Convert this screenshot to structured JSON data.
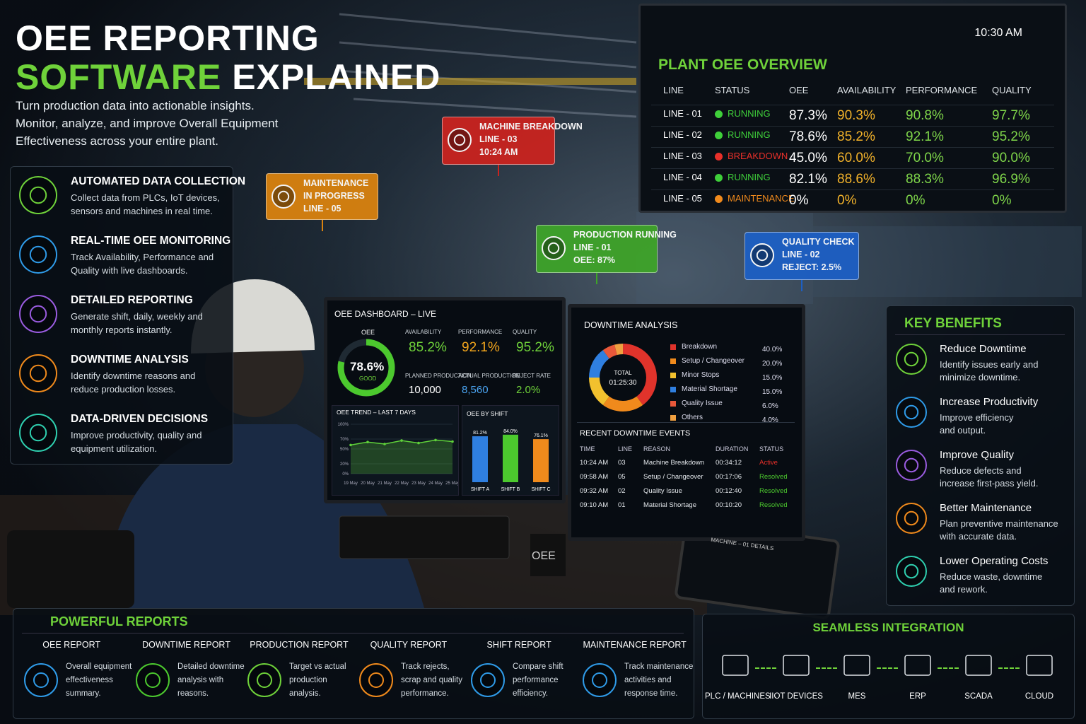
{
  "header": {
    "title_line1": "OEE REPORTING",
    "title_highlight": "SOFTWARE",
    "title_rest": "EXPLAINED",
    "subtitle": [
      "Turn production data into actionable insights.",
      "Monitor, analyze, and improve Overall Equipment",
      "Effectiveness across your entire plant."
    ]
  },
  "features": [
    {
      "title": "AUTOMATED DATA COLLECTION",
      "desc": [
        "Collect data from PLCs, IoT devices,",
        "sensors and machines in real time."
      ],
      "color": "#6fd23a"
    },
    {
      "title": "REAL-TIME OEE MONITORING",
      "desc": [
        "Track Availability, Performance and",
        "Quality with live dashboards."
      ],
      "color": "#2f9be8"
    },
    {
      "title": "DETAILED REPORTING",
      "desc": [
        "Generate shift, daily, weekly and",
        "monthly reports instantly."
      ],
      "color": "#9a5ce0"
    },
    {
      "title": "DOWNTIME ANALYSIS",
      "desc": [
        "Identify downtime reasons and",
        "reduce production losses."
      ],
      "color": "#f08a1c"
    },
    {
      "title": "DATA-DRIVEN DECISIONS",
      "desc": [
        "Improve productivity, quality and",
        "equipment utilization."
      ],
      "color": "#2fd0b0"
    }
  ],
  "callouts": [
    {
      "lines": [
        "MAINTENANCE",
        "IN PROGRESS",
        "LINE - 05"
      ],
      "color": "#d9820f"
    },
    {
      "lines": [
        "MACHINE BREAKDOWN",
        "LINE - 03",
        "10:24 AM"
      ],
      "color": "#c9231f"
    },
    {
      "lines": [
        "PRODUCTION RUNNING",
        "LINE - 01",
        "OEE: 87%"
      ],
      "color": "#3ea329"
    },
    {
      "lines": [
        "QUALITY CHECK",
        "LINE - 02",
        "REJECT: 2.5%"
      ],
      "color": "#1d5fc4"
    }
  ],
  "overview": {
    "time": "10:30 AM",
    "title": "PLANT OEE OVERVIEW",
    "columns": [
      "LINE",
      "STATUS",
      "OEE",
      "AVAILABILITY",
      "PERFORMANCE",
      "QUALITY"
    ],
    "rows": [
      [
        "LINE - 01",
        "RUNNING",
        "87.3%",
        "90.3%",
        "90.8%",
        "97.7%"
      ],
      [
        "LINE - 02",
        "RUNNING",
        "78.6%",
        "85.2%",
        "92.1%",
        "95.2%"
      ],
      [
        "LINE - 03",
        "BREAKDOWN",
        "45.0%",
        "60.0%",
        "70.0%",
        "90.0%"
      ],
      [
        "LINE - 04",
        "RUNNING",
        "82.1%",
        "88.6%",
        "88.3%",
        "96.9%"
      ],
      [
        "LINE - 05",
        "MAINTENANCE",
        "0%",
        "0%",
        "0%",
        "0%"
      ]
    ],
    "status_colors": [
      "#3fcf3a",
      "#3fcf3a",
      "#e8302a",
      "#3fcf3a",
      "#f08a1c"
    ]
  },
  "dashboard": {
    "title": "OEE DASHBOARD – LIVE",
    "gauge": {
      "label": "OEE",
      "value": 78.6,
      "value_label": "78.6%",
      "rating": "GOOD",
      "ylim": [
        0,
        100
      ],
      "color": "#4cc92e"
    },
    "metrics": [
      {
        "label": "AVAILABILITY",
        "value": "85.2%",
        "color": "#6fd23a"
      },
      {
        "label": "PERFORMANCE",
        "value": "92.1%",
        "color": "#f2a51c"
      },
      {
        "label": "QUALITY",
        "value": "95.2%",
        "color": "#6fd23a"
      },
      {
        "label": "PLANNED PRODUCTION",
        "value": "10,000",
        "color": "#ffffff"
      },
      {
        "label": "ACTUAL PRODUCTION",
        "value": "8,560",
        "color": "#4aa3f0"
      },
      {
        "label": "REJECT RATE",
        "value": "2.0%",
        "color": "#6fd23a"
      }
    ],
    "trend": {
      "type": "line",
      "title": "OEE TREND – LAST 7 DAYS",
      "categories": [
        "19 May",
        "20 May",
        "21 May",
        "22 May",
        "23 May",
        "24 May",
        "25 May"
      ],
      "values": [
        58,
        64,
        60,
        67,
        62,
        68,
        65
      ],
      "color": "#5fd23a",
      "ylim": [
        0,
        100
      ],
      "yticks": [
        {
          "value": 0,
          "label": "0%"
        },
        {
          "value": 20,
          "label": "20%"
        },
        {
          "value": 50,
          "label": "50%"
        },
        {
          "value": 70,
          "label": "70%"
        },
        {
          "value": 100,
          "label": "100%"
        }
      ]
    },
    "shift": {
      "type": "bar",
      "title": "OEE BY SHIFT",
      "categories": [
        "SHIFT A",
        "SHIFT B",
        "SHIFT C"
      ],
      "values": [
        81.2,
        84.0,
        76.1
      ],
      "value_labels": [
        "81.2%",
        "84.0%",
        "76.1%"
      ],
      "colors": [
        "#2f7fe0",
        "#4cc92e",
        "#f08a1c"
      ],
      "ylim": [
        0,
        100
      ]
    }
  },
  "downtime": {
    "type": "pie",
    "title": "DOWNTIME ANALYSIS",
    "center_label": "TOTAL",
    "center_value": "01:25:30",
    "categories": [
      "Breakdown",
      "Setup / Changeover",
      "Minor Stops",
      "Material Shortage",
      "Quality Issue",
      "Others"
    ],
    "values": [
      40,
      20,
      15,
      15,
      6,
      4
    ],
    "value_labels": [
      "40.0%",
      "20.0%",
      "15.0%",
      "15.0%",
      "6.0%",
      "4.0%"
    ],
    "colors": [
      "#e0332b",
      "#f08a1c",
      "#f2c12e",
      "#2f7fe0",
      "#e8583a",
      "#f0a040"
    ]
  },
  "events": {
    "title": "RECENT DOWNTIME EVENTS",
    "columns": [
      "TIME",
      "LINE",
      "REASON",
      "DURATION",
      "STATUS"
    ],
    "rows": [
      [
        "10:24 AM",
        "03",
        "Machine Breakdown",
        "00:34:12",
        "Active"
      ],
      [
        "09:58 AM",
        "05",
        "Setup / Changeover",
        "00:17:06",
        "Resolved"
      ],
      [
        "09:32 AM",
        "02",
        "Quality Issue",
        "00:12:40",
        "Resolved"
      ],
      [
        "09:10 AM",
        "01",
        "Material Shortage",
        "00:10:20",
        "Resolved"
      ]
    ],
    "status_colors": [
      "#e8302a",
      "#4cc92e",
      "#4cc92e",
      "#4cc92e"
    ]
  },
  "mug": "OEE",
  "tablet": "MACHINE – 01 DETAILS",
  "benefits": {
    "title": "KEY BENEFITS",
    "items": [
      {
        "title": "Reduce Downtime",
        "desc": [
          "Identify issues early and",
          "minimize downtime."
        ],
        "color": "#6fd23a"
      },
      {
        "title": "Increase Productivity",
        "desc": [
          "Improve efficiency",
          "and output."
        ],
        "color": "#2f9be8"
      },
      {
        "title": "Improve Quality",
        "desc": [
          "Reduce defects and",
          "increase first-pass yield."
        ],
        "color": "#9a5ce0"
      },
      {
        "title": "Better Maintenance",
        "desc": [
          "Plan preventive maintenance",
          "with accurate data."
        ],
        "color": "#f08a1c"
      },
      {
        "title": "Lower Operating Costs",
        "desc": [
          "Reduce waste, downtime",
          "and rework."
        ],
        "color": "#2fd0b0"
      }
    ]
  },
  "reports": {
    "title": "POWERFUL REPORTS",
    "items": [
      {
        "title": "OEE REPORT",
        "desc": [
          "Overall equipment",
          "effectiveness",
          "summary."
        ],
        "color": "#2f9be8"
      },
      {
        "title": "DOWNTIME REPORT",
        "desc": [
          "Detailed downtime",
          "analysis with",
          "reasons."
        ],
        "color": "#4cc92e"
      },
      {
        "title": "PRODUCTION REPORT",
        "desc": [
          "Target vs actual",
          "production",
          "analysis."
        ],
        "color": "#6fd23a"
      },
      {
        "title": "QUALITY REPORT",
        "desc": [
          "Track rejects,",
          "scrap and quality",
          "performance."
        ],
        "color": "#f08a1c"
      },
      {
        "title": "SHIFT REPORT",
        "desc": [
          "Compare shift",
          "performance",
          "efficiency."
        ],
        "color": "#2f9be8"
      },
      {
        "title": "MAINTENANCE REPORT",
        "desc": [
          "Track maintenance",
          "activities and",
          "response time."
        ],
        "color": "#2f9be8"
      }
    ]
  },
  "integration": {
    "title": "SEAMLESS INTEGRATION",
    "items": [
      "PLC / MACHINES",
      "IIOT DEVICES",
      "MES",
      "ERP",
      "SCADA",
      "CLOUD"
    ]
  }
}
